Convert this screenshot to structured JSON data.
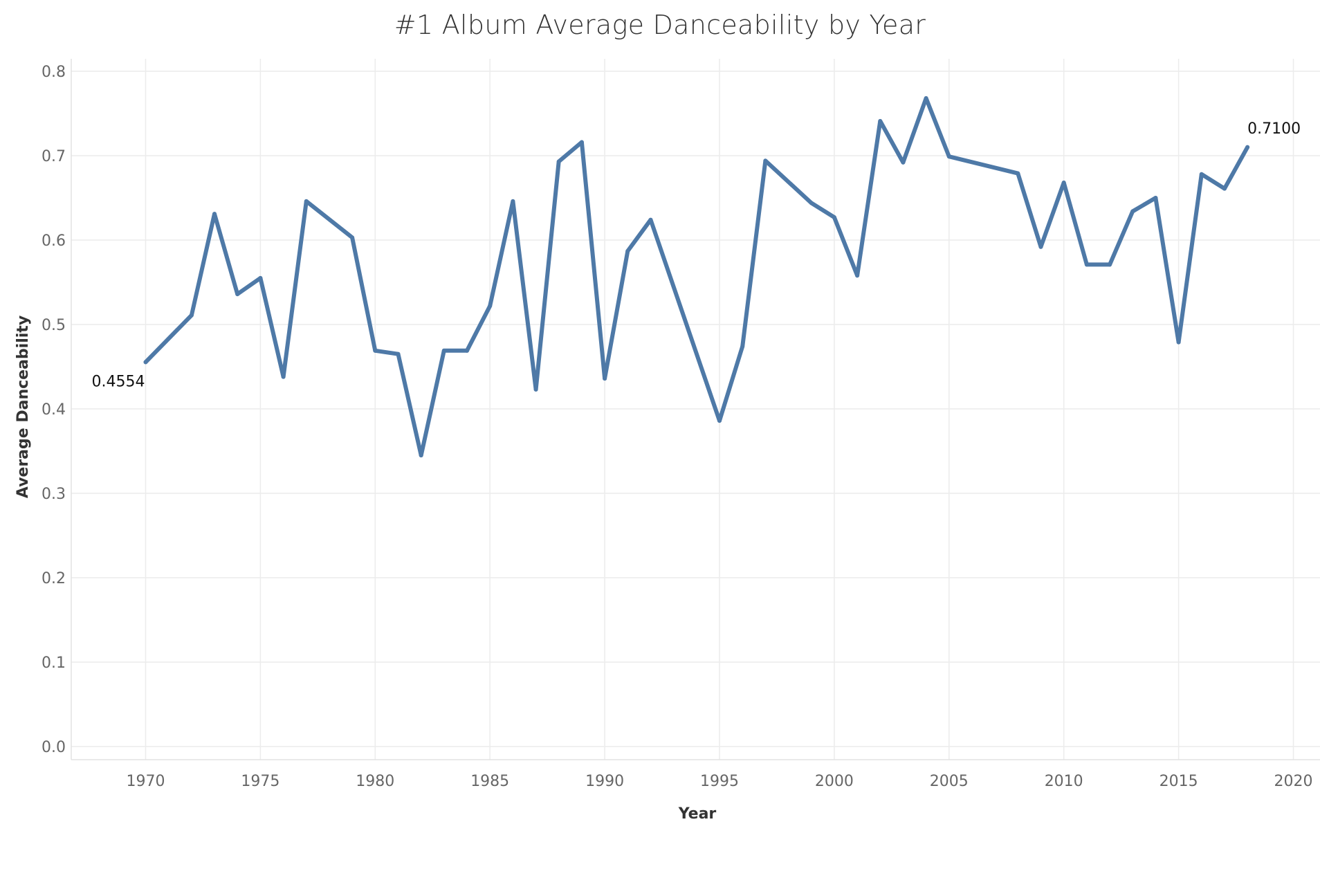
{
  "chart_data": {
    "type": "line",
    "title": "#1 Album Average Danceability by Year",
    "xlabel": "Year",
    "ylabel": "Average Danceability",
    "xlim": [
      1967,
      2021
    ],
    "ylim": [
      0,
      0.8
    ],
    "x_ticks": [
      1970,
      1975,
      1980,
      1985,
      1990,
      1995,
      2000,
      2005,
      2010,
      2015,
      2020
    ],
    "y_ticks": [
      "0.0",
      "0.1",
      "0.2",
      "0.3",
      "0.4",
      "0.5",
      "0.6",
      "0.7",
      "0.8"
    ],
    "grid": true,
    "line_color": "#4e79a7",
    "series": [
      {
        "x": [
          1970,
          1972,
          1973,
          1974,
          1975,
          1976,
          1977,
          1979,
          1980,
          1981,
          1982,
          1983,
          1984,
          1985,
          1986,
          1987,
          1988,
          1989,
          1990,
          1991,
          1992,
          1995,
          1996,
          1997,
          1999,
          2000,
          2001,
          2002,
          2003,
          2004,
          2005,
          2008,
          2009,
          2010,
          2011,
          2012,
          2013,
          2014,
          2015,
          2016,
          2017,
          2018
        ],
        "values": [
          0.4554,
          0.511,
          0.631,
          0.536,
          0.555,
          0.438,
          0.646,
          0.603,
          0.469,
          0.465,
          0.345,
          0.469,
          0.469,
          0.522,
          0.646,
          0.423,
          0.693,
          0.716,
          0.436,
          0.587,
          0.624,
          0.386,
          0.474,
          0.694,
          0.644,
          0.627,
          0.558,
          0.741,
          0.692,
          0.768,
          0.699,
          0.679,
          0.592,
          0.668,
          0.571,
          0.571,
          0.634,
          0.65,
          0.479,
          0.678,
          0.661,
          0.71
        ]
      }
    ],
    "annotations": [
      {
        "x": 1970,
        "y": 0.4554,
        "text": "0.4554",
        "position": "below-left"
      },
      {
        "x": 2018,
        "y": 0.71,
        "text": "0.7100",
        "position": "above-right"
      }
    ]
  }
}
